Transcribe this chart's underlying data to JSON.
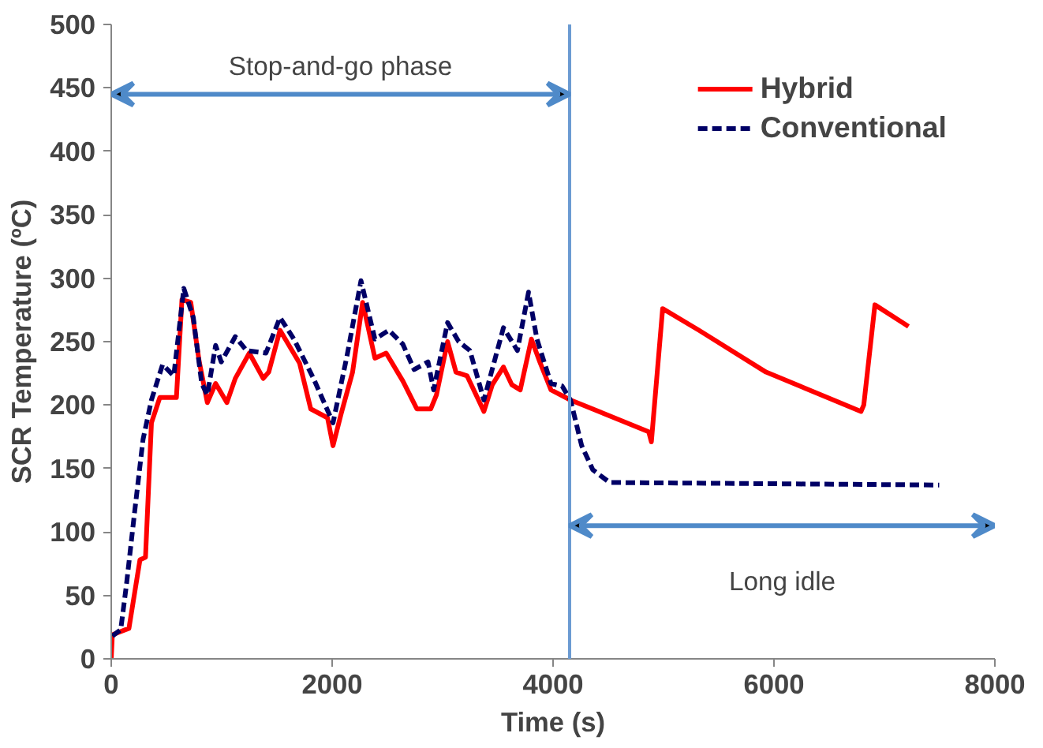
{
  "chart_data": {
    "type": "line",
    "xlabel": "Time (s)",
    "ylabel": "SCR Temperature (ºC)",
    "xlim": [
      0,
      8000
    ],
    "ylim": [
      0,
      500
    ],
    "xticks": [
      0,
      2000,
      4000,
      6000,
      8000
    ],
    "yticks": [
      0,
      50,
      100,
      150,
      200,
      250,
      300,
      350,
      400,
      450,
      500
    ],
    "grid": false,
    "legend": "top right",
    "series": [
      {
        "name": "Hybrid",
        "color": "#ff0000",
        "line_style": "solid",
        "x": [
          0,
          10,
          160,
          260,
          310,
          364,
          440,
          590,
          640,
          720,
          795,
          870,
          945,
          1047,
          1123,
          1250,
          1376,
          1426,
          1528,
          1705,
          1806,
          1958,
          2008,
          2084,
          2185,
          2276,
          2387,
          2489,
          2640,
          2767,
          2893,
          2944,
          3045,
          3121,
          3222,
          3374,
          3450,
          3551,
          3627,
          3703,
          3804,
          3880,
          3981,
          4158,
          4866,
          4890,
          4992,
          5320,
          5928,
          6788,
          6813,
          6914,
          7218
        ],
        "values": [
          0,
          19,
          24,
          78,
          80,
          186,
          206,
          206,
          283,
          281,
          235,
          202,
          217,
          202,
          221,
          241,
          221,
          226,
          259,
          233,
          197,
          190,
          168,
          194,
          226,
          281,
          237,
          241,
          219,
          197,
          197,
          208,
          250,
          226,
          223,
          195,
          216,
          230,
          216,
          212,
          252,
          234,
          212,
          204,
          179,
          171,
          276,
          259,
          226,
          195,
          200,
          279,
          262
        ]
      },
      {
        "name": "Conventional",
        "color": "#000066",
        "line_style": "dashed",
        "x": [
          10,
          86,
          137,
          212,
          288,
          364,
          465,
          566,
          657,
          743,
          819,
          870,
          945,
          996,
          1123,
          1224,
          1401,
          1528,
          1654,
          1831,
          2008,
          2135,
          2261,
          2387,
          2514,
          2640,
          2742,
          2868,
          2919,
          3045,
          3146,
          3247,
          3374,
          3551,
          3677,
          3778,
          3854,
          3981,
          4082,
          4158,
          4259,
          4360,
          4512,
          7496
        ],
        "values": [
          18,
          23,
          58,
          116,
          173,
          204,
          232,
          223,
          292,
          269,
          217,
          208,
          247,
          234,
          254,
          243,
          241,
          269,
          252,
          221,
          186,
          239,
          298,
          252,
          259,
          248,
          228,
          234,
          212,
          265,
          250,
          243,
          204,
          261,
          243,
          289,
          252,
          217,
          215,
          204,
          168,
          149,
          139,
          137
        ]
      }
    ],
    "ref_lines": [
      {
        "axis": "x",
        "value": 4150,
        "color": "#6c9bd2"
      }
    ],
    "annotations": [
      "Stop-and-go phase",
      "Long idle"
    ]
  }
}
